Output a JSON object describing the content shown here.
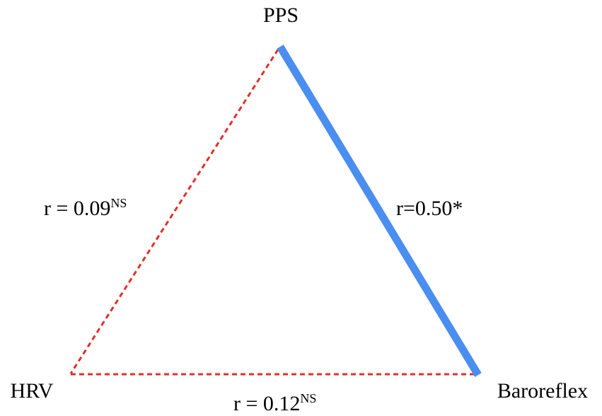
{
  "nodes": [
    {
      "label": "PPS"
    },
    {
      "label": "HRV"
    },
    {
      "label": "Baroreflex"
    }
  ],
  "edges": [
    {
      "label": "r = 0.09",
      "superscript": "NS"
    },
    {
      "label": "r=0.50*"
    },
    {
      "label": "r = 0.12",
      "superscript": "NS"
    }
  ]
}
